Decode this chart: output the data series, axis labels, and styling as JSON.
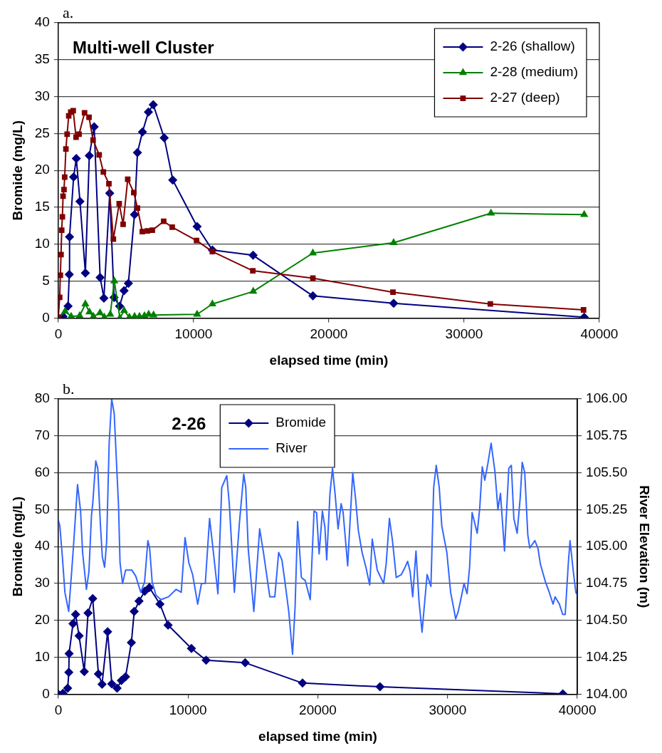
{
  "chart_data": [
    {
      "type": "line",
      "annotations": [
        "a.",
        "Multi-well Cluster"
      ],
      "xlabel": "elapsed time (min)",
      "ylabel": "Bromide (mg/L)",
      "xlim": [
        0,
        40000
      ],
      "xticks": [
        0,
        10000,
        20000,
        30000,
        40000
      ],
      "ylim": [
        0,
        40
      ],
      "yticks": [
        0,
        5,
        10,
        15,
        20,
        25,
        30,
        35,
        40
      ],
      "grid": "y",
      "legend": "top right",
      "series": [
        {
          "name": "2-26 (shallow)",
          "color": "#000080",
          "marker": "diamond",
          "x": [
            0,
            350,
            720,
            810,
            830,
            1130,
            1330,
            1600,
            2000,
            2290,
            2650,
            3090,
            3370,
            3800,
            4120,
            4530,
            4860,
            5180,
            5630,
            5850,
            6220,
            6660,
            7020,
            7830,
            8460,
            10260,
            11390,
            14400,
            18820,
            24790,
            38880
          ],
          "values": [
            0,
            0.2,
            1.6,
            5.9,
            11.0,
            19.1,
            21.6,
            15.8,
            6.1,
            22.0,
            25.9,
            5.5,
            2.7,
            16.9,
            2.8,
            1.6,
            3.7,
            4.7,
            14.0,
            22.4,
            25.2,
            27.9,
            28.9,
            24.4,
            18.7,
            12.4,
            9.2,
            8.5,
            3.0,
            2.0,
            0.1
          ]
        },
        {
          "name": "2-28 (medium)",
          "color": "#008000",
          "marker": "triangle",
          "x": [
            0,
            500,
            950,
            1580,
            2000,
            2300,
            2590,
            3080,
            3400,
            3840,
            4140,
            4550,
            4860,
            5250,
            5640,
            6000,
            6370,
            6680,
            7040,
            10260,
            11390,
            14410,
            18820,
            24790,
            31990,
            38880
          ],
          "values": [
            0,
            0.9,
            0.2,
            0.3,
            1.9,
            0.8,
            0.2,
            0.7,
            0.1,
            0.5,
            5.0,
            0,
            1.0,
            0.1,
            0.2,
            0.2,
            0.3,
            0.5,
            0.4,
            0.5,
            1.9,
            3.6,
            8.8,
            10.2,
            14.2,
            14.0
          ]
        },
        {
          "name": "2-27 (deep)",
          "color": "#800000",
          "marker": "square",
          "x": [
            0,
            100,
            150,
            200,
            250,
            300,
            350,
            420,
            470,
            560,
            650,
            770,
            920,
            1100,
            1310,
            1530,
            1940,
            2270,
            2570,
            3020,
            3330,
            3740,
            4070,
            4500,
            4790,
            5130,
            5580,
            5850,
            6210,
            6590,
            6950,
            7790,
            8420,
            10220,
            11390,
            14380,
            18820,
            24740,
            31940,
            38830
          ],
          "values": [
            0.1,
            2.8,
            5.8,
            8.6,
            11.9,
            13.7,
            16.5,
            17.4,
            19.1,
            22.9,
            24.9,
            27.4,
            27.9,
            28.1,
            24.5,
            24.9,
            27.8,
            27.2,
            24.1,
            22.1,
            19.8,
            18.2,
            10.7,
            15.5,
            12.7,
            18.8,
            17.0,
            14.9,
            11.7,
            11.8,
            11.9,
            13.1,
            12.3,
            10.5,
            9.0,
            6.4,
            5.4,
            3.5,
            1.9,
            1.1
          ]
        }
      ]
    },
    {
      "type": "line",
      "annotations": [
        "b.",
        "2-26"
      ],
      "xlabel": "elapsed time (min)",
      "ylabel": "Bromide (mg/L)",
      "y2label": "River Elevation (m)",
      "xlim": [
        0,
        40000
      ],
      "xticks": [
        0,
        10000,
        20000,
        30000,
        40000
      ],
      "ylim": [
        0,
        80
      ],
      "yticks": [
        0,
        10,
        20,
        30,
        40,
        50,
        60,
        70,
        80
      ],
      "y2lim": [
        104,
        106
      ],
      "y2ticks": [
        {
          "value": 104,
          "label": "104.00"
        },
        {
          "value": 104.25,
          "label": "104.25"
        },
        {
          "value": 104.5,
          "label": "104.50"
        },
        {
          "value": 104.75,
          "label": "104.75"
        },
        {
          "value": 105,
          "label": "105.00"
        },
        {
          "value": 105.25,
          "label": "105.25"
        },
        {
          "value": 105.5,
          "label": "105.50"
        },
        {
          "value": 105.75,
          "label": "105.75"
        },
        {
          "value": 106,
          "label": "106.00"
        }
      ],
      "grid": "y",
      "legend": "top",
      "series": [
        {
          "name": "Bromide",
          "color": "#000080",
          "marker": "diamond",
          "x": [
            0,
            350,
            720,
            810,
            830,
            1130,
            1330,
            1600,
            2000,
            2290,
            2650,
            3090,
            3370,
            3800,
            4120,
            4530,
            4860,
            5180,
            5630,
            5850,
            6220,
            6660,
            7020,
            7830,
            8460,
            10260,
            11390,
            14400,
            18820,
            24790,
            38880
          ],
          "values": [
            0,
            0.2,
            1.6,
            5.9,
            11.0,
            19.1,
            21.6,
            15.8,
            6.1,
            22.0,
            25.9,
            5.5,
            2.7,
            16.9,
            2.8,
            1.6,
            3.7,
            4.7,
            14.0,
            22.4,
            25.2,
            27.9,
            28.9,
            24.4,
            18.7,
            12.4,
            9.2,
            8.5,
            3.0,
            2.0,
            0.1
          ]
        },
        {
          "name": "River",
          "color": "#3366ff",
          "marker": "none",
          "axis": "y2",
          "x": [
            0,
            117,
            312,
            507,
            799,
            1053,
            1189,
            1481,
            1715,
            1871,
            2164,
            2359,
            2554,
            2651,
            2885,
            3041,
            3236,
            3392,
            3567,
            3723,
            3918,
            4113,
            4308,
            4503,
            4639,
            4756,
            4951,
            5185,
            5380,
            5673,
            5965,
            6355,
            6647,
            6901,
            7037,
            7232,
            7525,
            7914,
            8499,
            9084,
            9474,
            9766,
            10059,
            10351,
            10741,
            11033,
            11326,
            11657,
            11852,
            12300,
            12593,
            12983,
            13177,
            13567,
            13957,
            14289,
            14445,
            14640,
            15068,
            15517,
            15809,
            16297,
            16686,
            16979,
            17232,
            17466,
            17759,
            18051,
            18246,
            18441,
            18733,
            19025,
            19415,
            19708,
            19903,
            20098,
            20351,
            20546,
            20683,
            20936,
            21131,
            21326,
            21560,
            21794,
            21950,
            22145,
            22300,
            22495,
            22690,
            22924,
            23119,
            23412,
            23704,
            23997,
            24191,
            24581,
            25068,
            25263,
            25517,
            25751,
            26043,
            26433,
            26725,
            26920,
            27115,
            27310,
            27564,
            27797,
            28031,
            28188,
            28422,
            28714,
            28928,
            29123,
            29357,
            29552,
            29942,
            30234,
            30624,
            30819,
            31014,
            31268,
            31501,
            31696,
            31891,
            32281,
            32476,
            32671,
            32866,
            33100,
            33353,
            33646,
            33879,
            34074,
            34386,
            34717,
            34912,
            35107,
            35360,
            35595,
            35751,
            35946,
            36180,
            36336,
            36725,
            36959,
            37154,
            37544,
            37836,
            38129,
            38285,
            38616,
            38870,
            39065,
            39299,
            39435,
            39689,
            39884,
            40000
          ],
          "values": [
            105.18,
            105.14,
            104.93,
            104.69,
            104.56,
            104.86,
            105.03,
            105.42,
            105.24,
            104.96,
            104.71,
            104.83,
            105.21,
            105.29,
            105.58,
            105.53,
            105.16,
            104.93,
            104.86,
            105.03,
            105.7,
            106.0,
            105.9,
            105.53,
            105.28,
            104.89,
            104.75,
            104.84,
            104.84,
            104.84,
            104.8,
            104.69,
            104.76,
            105.04,
            104.99,
            104.76,
            104.67,
            104.64,
            104.66,
            104.71,
            104.69,
            105.06,
            104.89,
            104.81,
            104.61,
            104.75,
            104.75,
            105.19,
            105.04,
            104.68,
            105.4,
            105.48,
            105.29,
            104.69,
            105.16,
            105.49,
            105.4,
            104.98,
            104.56,
            105.12,
            104.96,
            104.66,
            104.66,
            104.96,
            104.91,
            104.76,
            104.56,
            104.27,
            104.59,
            105.17,
            104.79,
            104.77,
            104.64,
            105.24,
            105.23,
            104.95,
            105.24,
            105.13,
            104.91,
            105.36,
            105.53,
            105.36,
            105.12,
            105.29,
            105.23,
            105.03,
            104.87,
            105.19,
            105.5,
            105.31,
            105.11,
            104.96,
            104.86,
            104.74,
            105.05,
            104.84,
            104.75,
            104.88,
            105.19,
            105.04,
            104.79,
            104.81,
            104.86,
            104.9,
            104.83,
            104.66,
            104.97,
            104.63,
            104.42,
            104.58,
            104.81,
            104.73,
            105.4,
            105.55,
            105.4,
            105.14,
            104.96,
            104.69,
            104.51,
            104.56,
            104.64,
            104.75,
            104.68,
            104.86,
            105.23,
            105.09,
            105.26,
            105.54,
            105.45,
            105.56,
            105.7,
            105.51,
            105.25,
            105.36,
            104.97,
            105.53,
            105.55,
            105.19,
            105.09,
            105.33,
            105.57,
            105.5,
            105.08,
            104.99,
            105.04,
            104.99,
            104.88,
            104.76,
            104.69,
            104.61,
            104.66,
            104.61,
            104.54,
            104.54,
            104.88,
            105.04,
            104.83,
            104.69,
            104.67
          ]
        }
      ]
    }
  ]
}
